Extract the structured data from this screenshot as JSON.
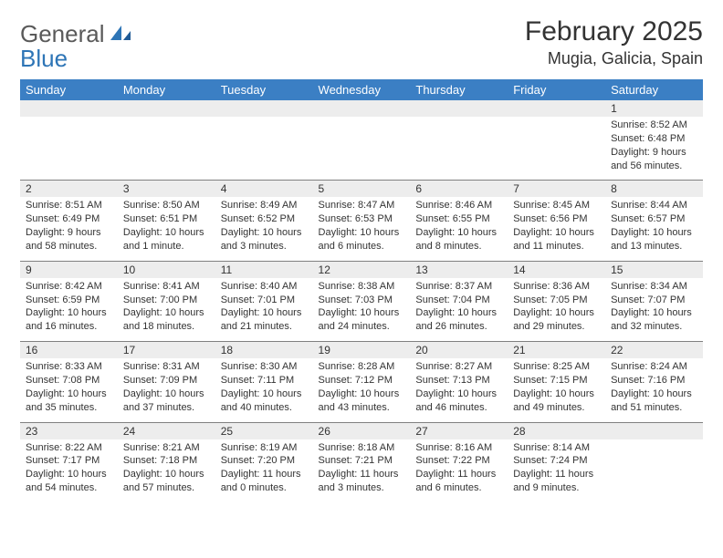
{
  "header": {
    "logo_general": "General",
    "logo_blue": "Blue",
    "month_title": "February 2025",
    "location": "Mugia, Galicia, Spain"
  },
  "day_headers": [
    "Sunday",
    "Monday",
    "Tuesday",
    "Wednesday",
    "Thursday",
    "Friday",
    "Saturday"
  ],
  "colors": {
    "header_bg": "#3b7fc4",
    "header_text": "#ffffff",
    "daynum_bg": "#ededed",
    "border": "#808080",
    "text": "#333333",
    "logo_gray": "#5a5a5a",
    "logo_blue": "#2e75b6"
  },
  "weeks": [
    [
      {
        "n": "",
        "sunrise": "",
        "sunset": "",
        "daylight": ""
      },
      {
        "n": "",
        "sunrise": "",
        "sunset": "",
        "daylight": ""
      },
      {
        "n": "",
        "sunrise": "",
        "sunset": "",
        "daylight": ""
      },
      {
        "n": "",
        "sunrise": "",
        "sunset": "",
        "daylight": ""
      },
      {
        "n": "",
        "sunrise": "",
        "sunset": "",
        "daylight": ""
      },
      {
        "n": "",
        "sunrise": "",
        "sunset": "",
        "daylight": ""
      },
      {
        "n": "1",
        "sunrise": "Sunrise: 8:52 AM",
        "sunset": "Sunset: 6:48 PM",
        "daylight": "Daylight: 9 hours and 56 minutes."
      }
    ],
    [
      {
        "n": "2",
        "sunrise": "Sunrise: 8:51 AM",
        "sunset": "Sunset: 6:49 PM",
        "daylight": "Daylight: 9 hours and 58 minutes."
      },
      {
        "n": "3",
        "sunrise": "Sunrise: 8:50 AM",
        "sunset": "Sunset: 6:51 PM",
        "daylight": "Daylight: 10 hours and 1 minute."
      },
      {
        "n": "4",
        "sunrise": "Sunrise: 8:49 AM",
        "sunset": "Sunset: 6:52 PM",
        "daylight": "Daylight: 10 hours and 3 minutes."
      },
      {
        "n": "5",
        "sunrise": "Sunrise: 8:47 AM",
        "sunset": "Sunset: 6:53 PM",
        "daylight": "Daylight: 10 hours and 6 minutes."
      },
      {
        "n": "6",
        "sunrise": "Sunrise: 8:46 AM",
        "sunset": "Sunset: 6:55 PM",
        "daylight": "Daylight: 10 hours and 8 minutes."
      },
      {
        "n": "7",
        "sunrise": "Sunrise: 8:45 AM",
        "sunset": "Sunset: 6:56 PM",
        "daylight": "Daylight: 10 hours and 11 minutes."
      },
      {
        "n": "8",
        "sunrise": "Sunrise: 8:44 AM",
        "sunset": "Sunset: 6:57 PM",
        "daylight": "Daylight: 10 hours and 13 minutes."
      }
    ],
    [
      {
        "n": "9",
        "sunrise": "Sunrise: 8:42 AM",
        "sunset": "Sunset: 6:59 PM",
        "daylight": "Daylight: 10 hours and 16 minutes."
      },
      {
        "n": "10",
        "sunrise": "Sunrise: 8:41 AM",
        "sunset": "Sunset: 7:00 PM",
        "daylight": "Daylight: 10 hours and 18 minutes."
      },
      {
        "n": "11",
        "sunrise": "Sunrise: 8:40 AM",
        "sunset": "Sunset: 7:01 PM",
        "daylight": "Daylight: 10 hours and 21 minutes."
      },
      {
        "n": "12",
        "sunrise": "Sunrise: 8:38 AM",
        "sunset": "Sunset: 7:03 PM",
        "daylight": "Daylight: 10 hours and 24 minutes."
      },
      {
        "n": "13",
        "sunrise": "Sunrise: 8:37 AM",
        "sunset": "Sunset: 7:04 PM",
        "daylight": "Daylight: 10 hours and 26 minutes."
      },
      {
        "n": "14",
        "sunrise": "Sunrise: 8:36 AM",
        "sunset": "Sunset: 7:05 PM",
        "daylight": "Daylight: 10 hours and 29 minutes."
      },
      {
        "n": "15",
        "sunrise": "Sunrise: 8:34 AM",
        "sunset": "Sunset: 7:07 PM",
        "daylight": "Daylight: 10 hours and 32 minutes."
      }
    ],
    [
      {
        "n": "16",
        "sunrise": "Sunrise: 8:33 AM",
        "sunset": "Sunset: 7:08 PM",
        "daylight": "Daylight: 10 hours and 35 minutes."
      },
      {
        "n": "17",
        "sunrise": "Sunrise: 8:31 AM",
        "sunset": "Sunset: 7:09 PM",
        "daylight": "Daylight: 10 hours and 37 minutes."
      },
      {
        "n": "18",
        "sunrise": "Sunrise: 8:30 AM",
        "sunset": "Sunset: 7:11 PM",
        "daylight": "Daylight: 10 hours and 40 minutes."
      },
      {
        "n": "19",
        "sunrise": "Sunrise: 8:28 AM",
        "sunset": "Sunset: 7:12 PM",
        "daylight": "Daylight: 10 hours and 43 minutes."
      },
      {
        "n": "20",
        "sunrise": "Sunrise: 8:27 AM",
        "sunset": "Sunset: 7:13 PM",
        "daylight": "Daylight: 10 hours and 46 minutes."
      },
      {
        "n": "21",
        "sunrise": "Sunrise: 8:25 AM",
        "sunset": "Sunset: 7:15 PM",
        "daylight": "Daylight: 10 hours and 49 minutes."
      },
      {
        "n": "22",
        "sunrise": "Sunrise: 8:24 AM",
        "sunset": "Sunset: 7:16 PM",
        "daylight": "Daylight: 10 hours and 51 minutes."
      }
    ],
    [
      {
        "n": "23",
        "sunrise": "Sunrise: 8:22 AM",
        "sunset": "Sunset: 7:17 PM",
        "daylight": "Daylight: 10 hours and 54 minutes."
      },
      {
        "n": "24",
        "sunrise": "Sunrise: 8:21 AM",
        "sunset": "Sunset: 7:18 PM",
        "daylight": "Daylight: 10 hours and 57 minutes."
      },
      {
        "n": "25",
        "sunrise": "Sunrise: 8:19 AM",
        "sunset": "Sunset: 7:20 PM",
        "daylight": "Daylight: 11 hours and 0 minutes."
      },
      {
        "n": "26",
        "sunrise": "Sunrise: 8:18 AM",
        "sunset": "Sunset: 7:21 PM",
        "daylight": "Daylight: 11 hours and 3 minutes."
      },
      {
        "n": "27",
        "sunrise": "Sunrise: 8:16 AM",
        "sunset": "Sunset: 7:22 PM",
        "daylight": "Daylight: 11 hours and 6 minutes."
      },
      {
        "n": "28",
        "sunrise": "Sunrise: 8:14 AM",
        "sunset": "Sunset: 7:24 PM",
        "daylight": "Daylight: 11 hours and 9 minutes."
      },
      {
        "n": "",
        "sunrise": "",
        "sunset": "",
        "daylight": ""
      }
    ]
  ]
}
